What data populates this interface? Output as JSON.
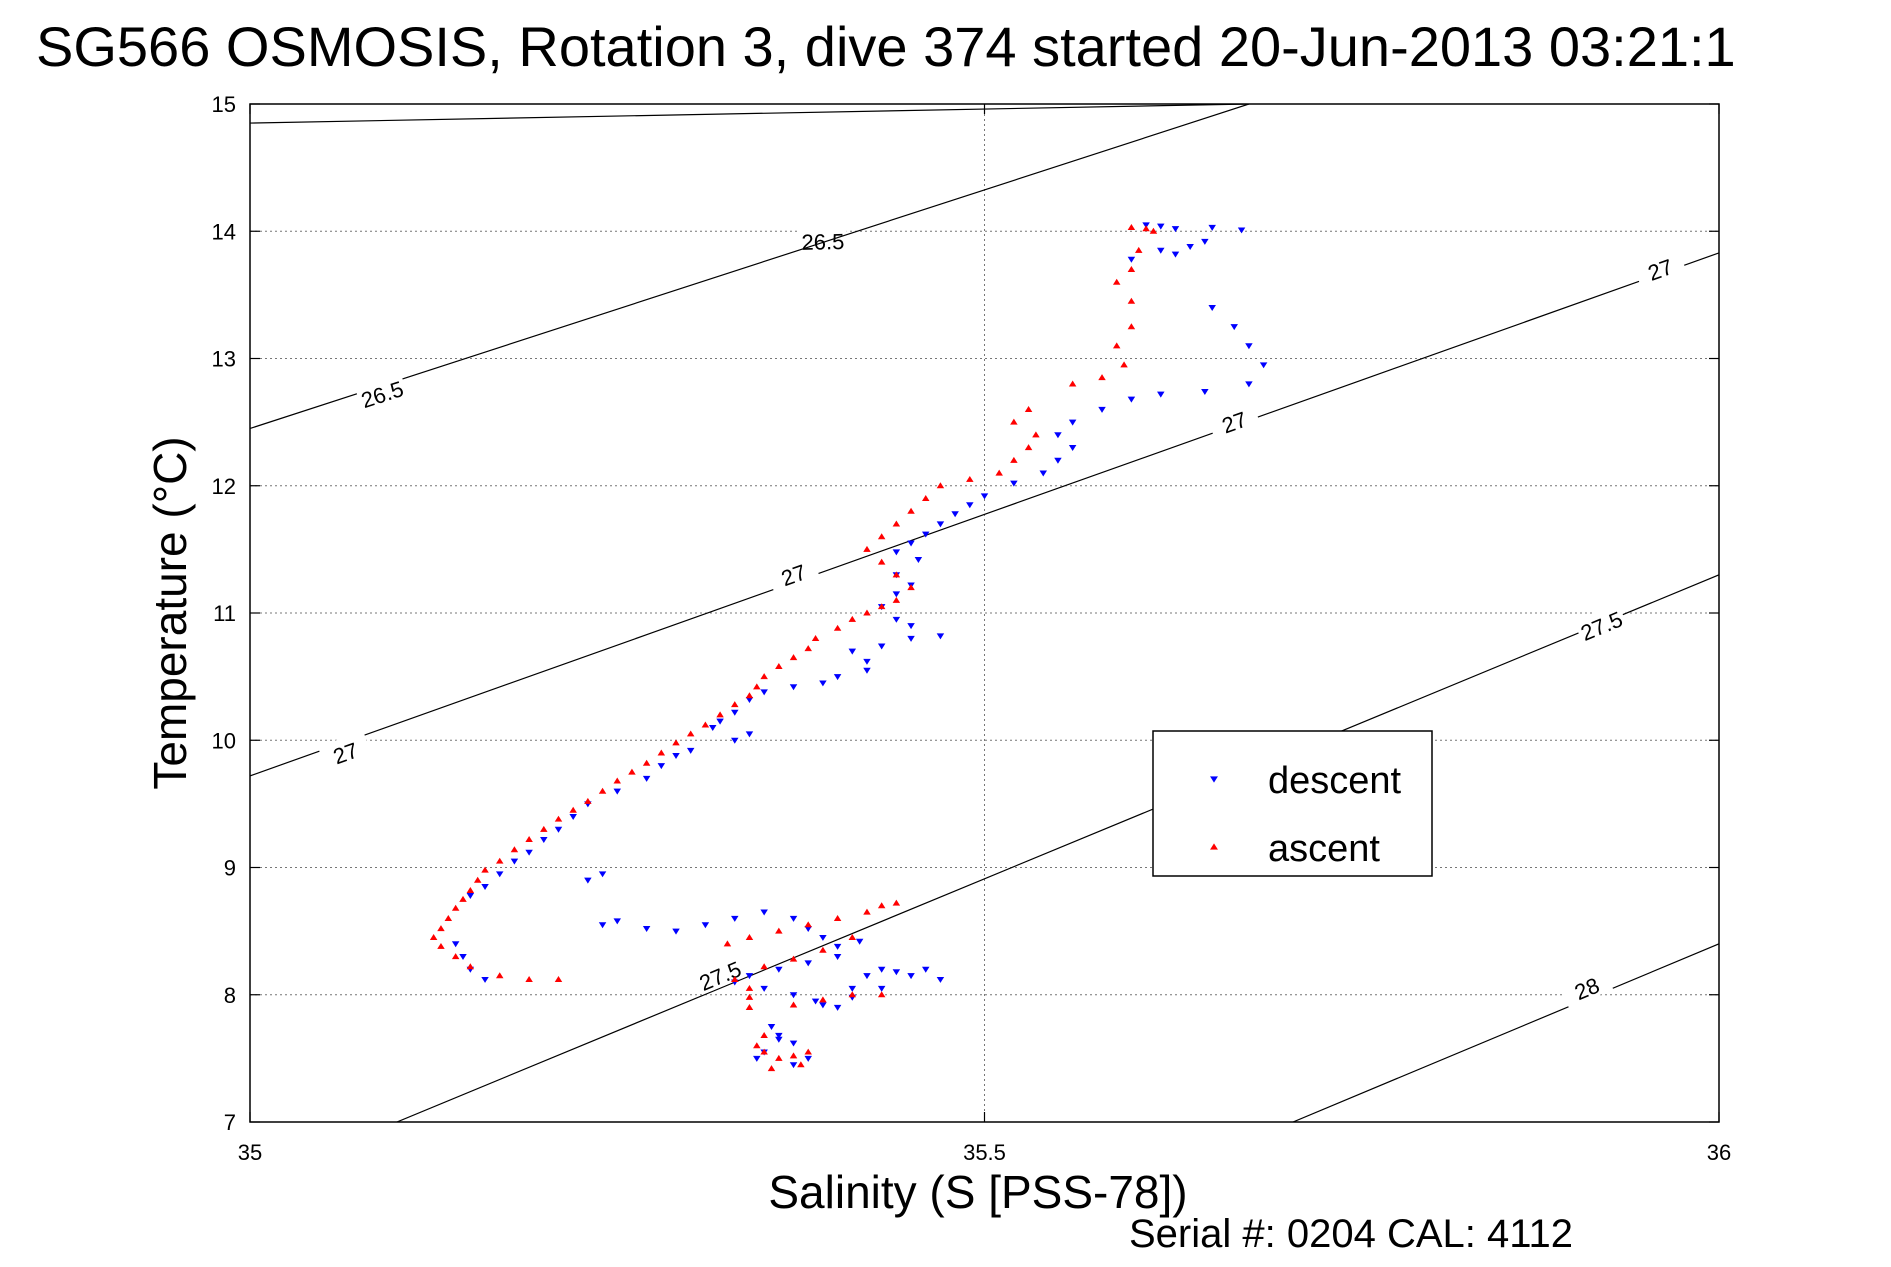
{
  "chart_data": {
    "type": "scatter",
    "title": "SG566 OSMOSIS, Rotation 3, dive 374 started 20-Jun-2013 03:21:1",
    "xlabel": "Salinity (S [PSS-78])",
    "ylabel": "Temperature (°C)",
    "footer": "Serial #: 0204  CAL: 4112",
    "xlim": [
      35,
      36
    ],
    "ylim": [
      7,
      15
    ],
    "x_ticks": [
      "35",
      "35.5",
      "36"
    ],
    "y_ticks": [
      "7",
      "8",
      "9",
      "10",
      "11",
      "12",
      "13",
      "14",
      "15"
    ],
    "grid": true,
    "legend": {
      "location": "center-right",
      "entries": [
        {
          "label": "descent",
          "marker": "down-triangle",
          "color": "#0000ff"
        },
        {
          "label": "ascent",
          "marker": "up-triangle",
          "color": "#ff0000"
        }
      ]
    },
    "density_contours": [
      {
        "label": "26.5",
        "line": [
          [
            35.0,
            14.85
          ],
          [
            35.68,
            15.0
          ]
        ],
        "labels_at": [
          [
            35.39,
            13.92
          ]
        ]
      },
      {
        "label": "26.5",
        "line": [
          [
            35.0,
            12.45
          ],
          [
            35.68,
            15.0
          ]
        ],
        "labels_at": [
          [
            35.09,
            12.72
          ]
        ]
      },
      {
        "label": "27",
        "line": [
          [
            35.0,
            9.72
          ],
          [
            36.0,
            13.83
          ]
        ],
        "labels_at": [
          [
            35.065,
            9.9
          ],
          [
            35.37,
            11.3
          ],
          [
            35.67,
            12.5
          ],
          [
            35.96,
            13.7
          ]
        ]
      },
      {
        "label": "27.5",
        "line": [
          [
            35.1,
            7.0
          ],
          [
            36.0,
            11.3
          ]
        ],
        "labels_at": [
          [
            35.32,
            8.15
          ],
          [
            35.92,
            10.9
          ]
        ]
      },
      {
        "label": "28",
        "line": [
          [
            35.71,
            7.0
          ],
          [
            36.0,
            8.4
          ]
        ],
        "labels_at": [
          [
            35.91,
            8.05
          ]
        ]
      }
    ],
    "series": [
      {
        "name": "descent",
        "points": [
          [
            35.61,
            14.05
          ],
          [
            35.62,
            14.04
          ],
          [
            35.63,
            14.02
          ],
          [
            35.655,
            14.03
          ],
          [
            35.675,
            14.01
          ],
          [
            35.62,
            13.85
          ],
          [
            35.63,
            13.82
          ],
          [
            35.64,
            13.88
          ],
          [
            35.6,
            13.78
          ],
          [
            35.65,
            13.92
          ],
          [
            35.655,
            13.4
          ],
          [
            35.67,
            13.25
          ],
          [
            35.68,
            13.1
          ],
          [
            35.69,
            12.95
          ],
          [
            35.68,
            12.8
          ],
          [
            35.65,
            12.74
          ],
          [
            35.62,
            12.72
          ],
          [
            35.6,
            12.68
          ],
          [
            35.58,
            12.6
          ],
          [
            35.56,
            12.5
          ],
          [
            35.55,
            12.4
          ],
          [
            35.56,
            12.3
          ],
          [
            35.55,
            12.2
          ],
          [
            35.54,
            12.1
          ],
          [
            35.52,
            12.02
          ],
          [
            35.5,
            11.92
          ],
          [
            35.49,
            11.85
          ],
          [
            35.48,
            11.78
          ],
          [
            35.47,
            11.7
          ],
          [
            35.46,
            11.62
          ],
          [
            35.45,
            11.55
          ],
          [
            35.44,
            11.48
          ],
          [
            35.455,
            11.42
          ],
          [
            35.44,
            11.3
          ],
          [
            35.45,
            11.22
          ],
          [
            35.44,
            11.15
          ],
          [
            35.43,
            11.05
          ],
          [
            35.44,
            10.95
          ],
          [
            35.45,
            10.9
          ],
          [
            35.47,
            10.82
          ],
          [
            35.45,
            10.8
          ],
          [
            35.43,
            10.74
          ],
          [
            35.41,
            10.7
          ],
          [
            35.42,
            10.62
          ],
          [
            35.42,
            10.55
          ],
          [
            35.4,
            10.5
          ],
          [
            35.39,
            10.45
          ],
          [
            35.37,
            10.42
          ],
          [
            35.35,
            10.38
          ],
          [
            35.34,
            10.32
          ],
          [
            35.33,
            10.22
          ],
          [
            35.32,
            10.15
          ],
          [
            35.315,
            10.1
          ],
          [
            35.33,
            10.0
          ],
          [
            35.34,
            10.05
          ],
          [
            35.3,
            9.92
          ],
          [
            35.29,
            9.88
          ],
          [
            35.28,
            9.8
          ],
          [
            35.27,
            9.7
          ],
          [
            35.25,
            9.6
          ],
          [
            35.23,
            9.5
          ],
          [
            35.22,
            9.4
          ],
          [
            35.21,
            9.3
          ],
          [
            35.2,
            9.22
          ],
          [
            35.19,
            9.12
          ],
          [
            35.18,
            9.05
          ],
          [
            35.17,
            8.95
          ],
          [
            35.16,
            8.85
          ],
          [
            35.15,
            8.78
          ],
          [
            35.23,
            8.9
          ],
          [
            35.24,
            8.95
          ],
          [
            35.24,
            8.55
          ],
          [
            35.25,
            8.58
          ],
          [
            35.27,
            8.52
          ],
          [
            35.29,
            8.5
          ],
          [
            35.31,
            8.55
          ],
          [
            35.33,
            8.6
          ],
          [
            35.35,
            8.65
          ],
          [
            35.37,
            8.6
          ],
          [
            35.38,
            8.52
          ],
          [
            35.39,
            8.45
          ],
          [
            35.4,
            8.38
          ],
          [
            35.415,
            8.42
          ],
          [
            35.4,
            8.3
          ],
          [
            35.38,
            8.25
          ],
          [
            35.36,
            8.2
          ],
          [
            35.34,
            8.15
          ],
          [
            35.33,
            8.1
          ],
          [
            35.35,
            8.05
          ],
          [
            35.37,
            8.0
          ],
          [
            35.385,
            7.95
          ],
          [
            35.4,
            7.9
          ],
          [
            35.41,
            8.05
          ],
          [
            35.42,
            8.15
          ],
          [
            35.43,
            8.2
          ],
          [
            35.44,
            8.18
          ],
          [
            35.45,
            8.15
          ],
          [
            35.46,
            8.2
          ],
          [
            35.47,
            8.12
          ],
          [
            35.43,
            8.05
          ],
          [
            35.41,
            7.98
          ],
          [
            35.39,
            7.92
          ],
          [
            35.355,
            7.75
          ],
          [
            35.36,
            7.68
          ],
          [
            35.37,
            7.62
          ],
          [
            35.35,
            7.55
          ],
          [
            35.345,
            7.5
          ],
          [
            35.37,
            7.45
          ],
          [
            35.38,
            7.5
          ],
          [
            35.36,
            7.65
          ],
          [
            35.14,
            8.4
          ],
          [
            35.145,
            8.3
          ],
          [
            35.15,
            8.2
          ],
          [
            35.16,
            8.12
          ]
        ]
      },
      {
        "name": "ascent",
        "points": [
          [
            35.6,
            14.03
          ],
          [
            35.61,
            14.02
          ],
          [
            35.615,
            14.0
          ],
          [
            35.605,
            13.85
          ],
          [
            35.6,
            13.7
          ],
          [
            35.59,
            13.6
          ],
          [
            35.6,
            13.45
          ],
          [
            35.6,
            13.25
          ],
          [
            35.59,
            13.1
          ],
          [
            35.595,
            12.95
          ],
          [
            35.58,
            12.85
          ],
          [
            35.56,
            12.8
          ],
          [
            35.53,
            12.6
          ],
          [
            35.52,
            12.5
          ],
          [
            35.535,
            12.4
          ],
          [
            35.53,
            12.3
          ],
          [
            35.52,
            12.2
          ],
          [
            35.51,
            12.1
          ],
          [
            35.49,
            12.05
          ],
          [
            35.47,
            12.0
          ],
          [
            35.46,
            11.9
          ],
          [
            35.45,
            11.8
          ],
          [
            35.44,
            11.7
          ],
          [
            35.43,
            11.6
          ],
          [
            35.42,
            11.5
          ],
          [
            35.43,
            11.4
          ],
          [
            35.44,
            11.3
          ],
          [
            35.45,
            11.2
          ],
          [
            35.44,
            11.1
          ],
          [
            35.43,
            11.05
          ],
          [
            35.42,
            11.0
          ],
          [
            35.41,
            10.95
          ],
          [
            35.4,
            10.88
          ],
          [
            35.385,
            10.8
          ],
          [
            35.38,
            10.72
          ],
          [
            35.37,
            10.65
          ],
          [
            35.36,
            10.58
          ],
          [
            35.35,
            10.5
          ],
          [
            35.345,
            10.42
          ],
          [
            35.34,
            10.35
          ],
          [
            35.33,
            10.28
          ],
          [
            35.32,
            10.2
          ],
          [
            35.31,
            10.12
          ],
          [
            35.3,
            10.05
          ],
          [
            35.29,
            9.98
          ],
          [
            35.28,
            9.9
          ],
          [
            35.27,
            9.82
          ],
          [
            35.26,
            9.75
          ],
          [
            35.25,
            9.68
          ],
          [
            35.24,
            9.6
          ],
          [
            35.23,
            9.52
          ],
          [
            35.22,
            9.45
          ],
          [
            35.21,
            9.38
          ],
          [
            35.2,
            9.3
          ],
          [
            35.19,
            9.22
          ],
          [
            35.18,
            9.14
          ],
          [
            35.17,
            9.05
          ],
          [
            35.16,
            8.98
          ],
          [
            35.155,
            8.9
          ],
          [
            35.15,
            8.82
          ],
          [
            35.145,
            8.75
          ],
          [
            35.14,
            8.68
          ],
          [
            35.135,
            8.6
          ],
          [
            35.13,
            8.52
          ],
          [
            35.125,
            8.45
          ],
          [
            35.13,
            8.38
          ],
          [
            35.14,
            8.3
          ],
          [
            35.15,
            8.22
          ],
          [
            35.17,
            8.15
          ],
          [
            35.19,
            8.12
          ],
          [
            35.21,
            8.12
          ],
          [
            35.325,
            8.4
          ],
          [
            35.34,
            8.45
          ],
          [
            35.36,
            8.5
          ],
          [
            35.38,
            8.55
          ],
          [
            35.4,
            8.6
          ],
          [
            35.42,
            8.65
          ],
          [
            35.43,
            8.7
          ],
          [
            35.44,
            8.72
          ],
          [
            35.41,
            8.45
          ],
          [
            35.39,
            8.35
          ],
          [
            35.37,
            8.28
          ],
          [
            35.35,
            8.22
          ],
          [
            35.33,
            8.12
          ],
          [
            35.34,
            8.05
          ],
          [
            35.34,
            7.98
          ],
          [
            35.34,
            7.9
          ],
          [
            35.37,
            7.92
          ],
          [
            35.39,
            7.96
          ],
          [
            35.41,
            8.0
          ],
          [
            35.43,
            8.0
          ],
          [
            35.35,
            7.68
          ],
          [
            35.345,
            7.6
          ],
          [
            35.35,
            7.55
          ],
          [
            35.36,
            7.5
          ],
          [
            35.37,
            7.52
          ],
          [
            35.38,
            7.55
          ],
          [
            35.355,
            7.42
          ],
          [
            35.375,
            7.45
          ]
        ]
      }
    ]
  }
}
